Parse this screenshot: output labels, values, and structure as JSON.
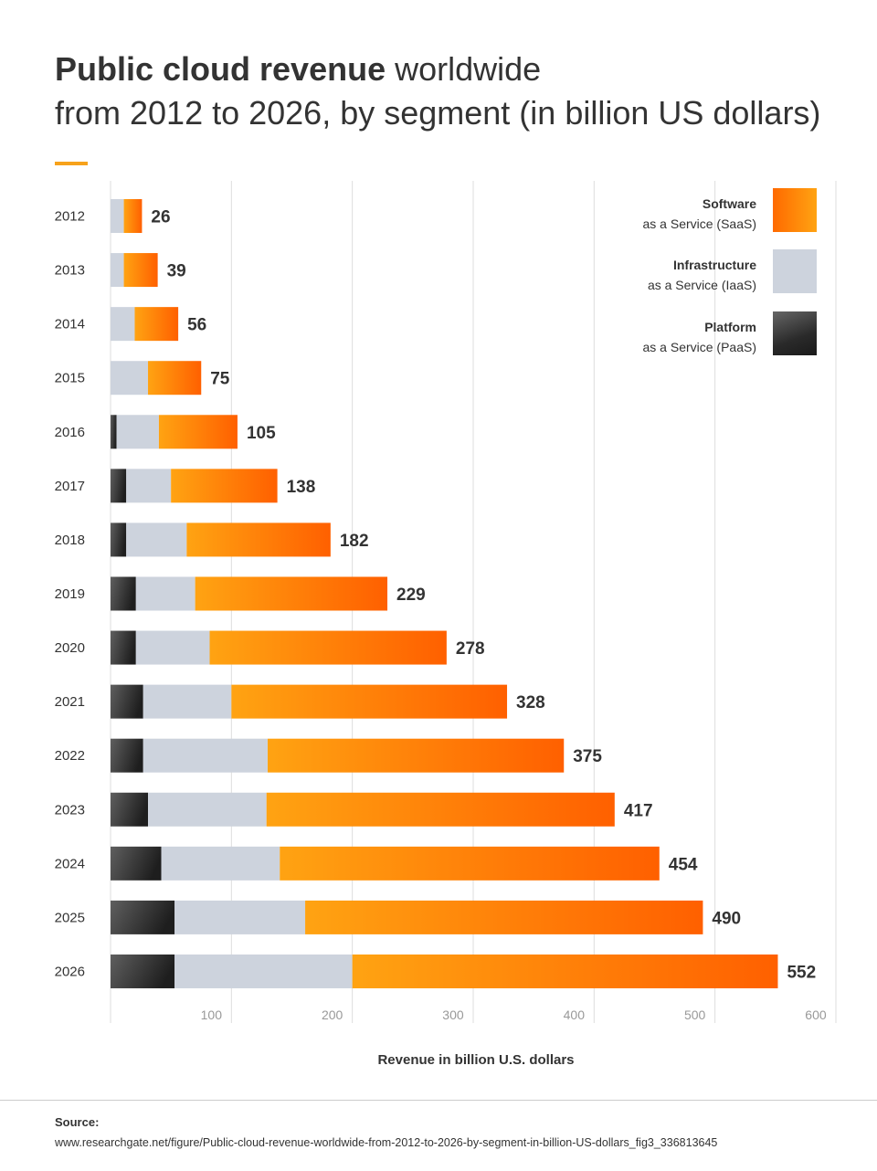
{
  "title": {
    "bold": "Public cloud revenue",
    "rest": " worldwide",
    "line2": "from 2012 to 2026, by segment (in billion US dollars)"
  },
  "legend": {
    "saas": {
      "name": "Software",
      "desc": "as a Service (SaaS)"
    },
    "iaas": {
      "name": "Infrastructure",
      "desc": "as a Service (IaaS)"
    },
    "paas": {
      "name": "Platform",
      "desc": "as a Service (PaaS)"
    }
  },
  "colors": {
    "saas_start": "#ffa312",
    "saas_end": "#ff6000",
    "iaas": "#cdd3dd",
    "paas_start": "#5f5f5f",
    "paas_end": "#1e1e1e",
    "gridline": "#dddddd",
    "accent": "#f7a21b"
  },
  "chart_data": {
    "type": "bar",
    "orientation": "horizontal",
    "stacked": true,
    "title": "Public cloud revenue worldwide from 2012 to 2026, by segment (in billion US dollars)",
    "xlabel": "Revenue in billion U.S. dollars",
    "ylabel": "",
    "xlim": [
      0,
      600
    ],
    "xticks": [
      100,
      200,
      300,
      400,
      500,
      600
    ],
    "grid": true,
    "legend_position": "top-right",
    "categories": [
      "2012",
      "2013",
      "2014",
      "2015",
      "2016",
      "2017",
      "2018",
      "2019",
      "2020",
      "2021",
      "2022",
      "2023",
      "2024",
      "2025",
      "2026"
    ],
    "series": [
      {
        "name": "Platform as a Service (PaaS)",
        "values": [
          0,
          0,
          0,
          0,
          5,
          13,
          13,
          21,
          21,
          27,
          27,
          31,
          42,
          53,
          53
        ]
      },
      {
        "name": "Infrastructure as a Service (IaaS)",
        "values": [
          11,
          11,
          20,
          31,
          35,
          37,
          50,
          49,
          61,
          73,
          103,
          98,
          98,
          108,
          147
        ]
      },
      {
        "name": "Software as a Service (SaaS)",
        "values": [
          15,
          28,
          36,
          44,
          65,
          88,
          119,
          159,
          196,
          228,
          245,
          288,
          314,
          329,
          352
        ]
      }
    ],
    "totals": [
      26,
      39,
      56,
      75,
      105,
      138,
      182,
      229,
      278,
      328,
      375,
      417,
      454,
      490,
      552
    ]
  },
  "axis_title": "Revenue in billion U.S. dollars",
  "source": {
    "label": "Source:",
    "url": "www.researchgate.net/figure/Public-cloud-revenue-worldwide-from-2012-to-2026-by-segment-in-billion-US-dollars_fig3_336813645"
  }
}
